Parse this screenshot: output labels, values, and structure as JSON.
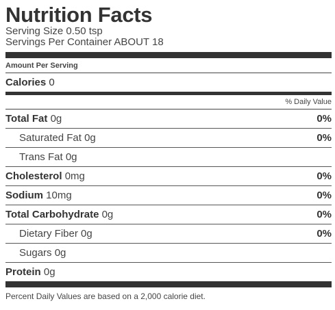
{
  "title": "Nutrition Facts",
  "serving_size": "Serving Size 0.50 tsp",
  "servings_per_container": "Servings Per Container ABOUT 18",
  "amount_per_serving": "Amount Per Serving",
  "calories": {
    "label": "Calories",
    "value": "0"
  },
  "daily_value_header": "% Daily Value",
  "nutrients": [
    {
      "label": "Total Fat",
      "amount": "0g",
      "dv": "0%"
    },
    {
      "label": "Saturated Fat",
      "amount": "0g",
      "dv": "0%"
    },
    {
      "label": "Trans Fat",
      "amount": "0g",
      "dv": ""
    },
    {
      "label": "Cholesterol",
      "amount": "0mg",
      "dv": "0%"
    },
    {
      "label": "Sodium",
      "amount": "10mg",
      "dv": "0%"
    },
    {
      "label": "Total Carbohydrate",
      "amount": "0g",
      "dv": "0%"
    },
    {
      "label": "Dietary Fiber",
      "amount": "0g",
      "dv": "0%"
    },
    {
      "label": "Sugars",
      "amount": "0g",
      "dv": ""
    },
    {
      "label": "Protein",
      "amount": "0g",
      "dv": ""
    }
  ],
  "footnote": "Percent Daily Values are based on a 2,000 calorie diet."
}
